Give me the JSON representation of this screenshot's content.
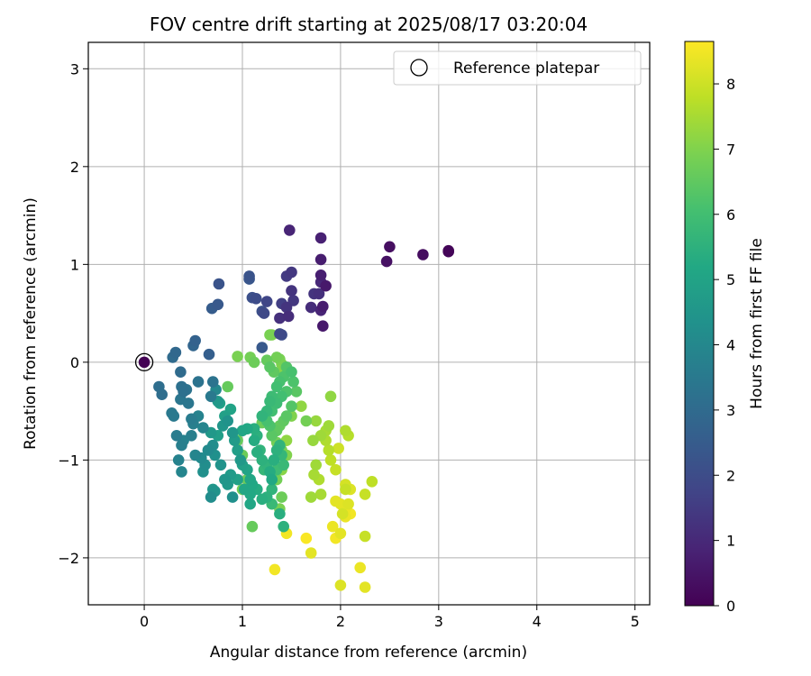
{
  "chart_data": {
    "type": "scatter",
    "title": "FOV centre drift starting at 2025/08/17 03:20:04",
    "xlabel": "Angular distance from reference (arcmin)",
    "ylabel": "Rotation from reference (arcmin)",
    "xlim": [
      -0.57,
      5.15
    ],
    "ylim": [
      -2.48,
      3.27
    ],
    "xticks": [
      0,
      1,
      2,
      3,
      4,
      5
    ],
    "xtick_labels": [
      "0",
      "1",
      "2",
      "3",
      "4",
      "5"
    ],
    "yticks": [
      -2,
      -1,
      0,
      1,
      2,
      3
    ],
    "ytick_labels": [
      "−2",
      "−1",
      "0",
      "1",
      "2",
      "3"
    ],
    "grid": true,
    "legend": {
      "position": "top-right",
      "entries": [
        {
          "label": "Reference platepar",
          "marker": "open-circle"
        }
      ]
    },
    "colorbar": {
      "label": "Hours from first FF file",
      "min": 0,
      "max": 8.65,
      "ticks": [
        0,
        1,
        2,
        3,
        4,
        5,
        6,
        7,
        8
      ],
      "tick_labels": [
        "0",
        "1",
        "2",
        "3",
        "4",
        "5",
        "6",
        "7",
        "8"
      ],
      "colormap": "viridis"
    },
    "reference_point": {
      "x": 0,
      "y": 0
    },
    "series": [
      {
        "points": [
          [
            3.1,
            1.14,
            0.1
          ],
          [
            3.1,
            1.13,
            0.2
          ],
          [
            2.84,
            1.1,
            0.3
          ],
          [
            2.5,
            1.18,
            0.35
          ],
          [
            2.47,
            1.03,
            0.4
          ],
          [
            1.48,
            1.35,
            0.9
          ],
          [
            1.8,
            1.27,
            0.8
          ],
          [
            1.8,
            1.05,
            0.7
          ],
          [
            1.8,
            0.89,
            0.75
          ],
          [
            1.8,
            0.82,
            1.0
          ],
          [
            1.85,
            0.78,
            0.6
          ],
          [
            1.82,
            0.57,
            0.7
          ],
          [
            1.8,
            0.53,
            0.9
          ],
          [
            1.82,
            0.37,
            0.6
          ],
          [
            1.7,
            0.56,
            1.1
          ],
          [
            1.73,
            0.7,
            1.3
          ],
          [
            1.78,
            0.7,
            1.2
          ],
          [
            1.5,
            0.92,
            1.4
          ],
          [
            1.45,
            0.88,
            1.5
          ],
          [
            1.5,
            0.73,
            1.3
          ],
          [
            1.52,
            0.63,
            1.4
          ],
          [
            1.4,
            0.6,
            1.6
          ],
          [
            1.38,
            0.45,
            1.2
          ],
          [
            1.47,
            0.47,
            1.1
          ],
          [
            1.45,
            0.56,
            1.3
          ],
          [
            1.25,
            0.62,
            1.8
          ],
          [
            1.22,
            0.5,
            1.9
          ],
          [
            1.2,
            0.52,
            2.1
          ],
          [
            1.14,
            0.65,
            2.0
          ],
          [
            1.1,
            0.66,
            2.1
          ],
          [
            1.07,
            0.88,
            2.2
          ],
          [
            1.07,
            0.85,
            2.3
          ],
          [
            0.76,
            0.8,
            2.2
          ],
          [
            0.75,
            0.59,
            2.4
          ],
          [
            0.69,
            0.55,
            2.5
          ],
          [
            1.2,
            0.15,
            2.4
          ],
          [
            1.38,
            0.29,
            1.9
          ],
          [
            1.4,
            0.28,
            2.0
          ],
          [
            0.66,
            0.08,
            2.6
          ],
          [
            0.52,
            0.22,
            2.7
          ],
          [
            0.5,
            0.17,
            2.8
          ],
          [
            0.32,
            0.1,
            2.9
          ],
          [
            0.29,
            0.05,
            3.0
          ],
          [
            0.37,
            -0.1,
            3.0
          ],
          [
            0.15,
            -0.25,
            3.1
          ],
          [
            0.18,
            -0.33,
            3.1
          ],
          [
            0.38,
            -0.25,
            3.2
          ],
          [
            0.4,
            -0.3,
            3.2
          ],
          [
            0.43,
            -0.28,
            3.3
          ],
          [
            0.55,
            -0.2,
            3.3
          ],
          [
            0.7,
            -0.2,
            3.3
          ],
          [
            0.68,
            -0.35,
            3.5
          ],
          [
            0.37,
            -0.38,
            3.4
          ],
          [
            0.45,
            -0.42,
            3.4
          ],
          [
            0.28,
            -0.52,
            3.5
          ],
          [
            0.3,
            -0.55,
            3.5
          ],
          [
            0.48,
            -0.58,
            3.6
          ],
          [
            0.5,
            -0.63,
            3.7
          ],
          [
            0.55,
            -0.55,
            3.8
          ],
          [
            0.6,
            -0.67,
            3.9
          ],
          [
            0.48,
            -0.75,
            3.7
          ],
          [
            0.33,
            -0.75,
            3.6
          ],
          [
            0.38,
            -0.85,
            3.7
          ],
          [
            0.4,
            -0.8,
            3.8
          ],
          [
            0.52,
            -0.95,
            3.9
          ],
          [
            0.35,
            -1.0,
            3.8
          ],
          [
            0.38,
            -1.12,
            3.9
          ],
          [
            0.65,
            -0.9,
            4.1
          ],
          [
            0.7,
            -0.85,
            4.2
          ],
          [
            0.72,
            -0.95,
            4.3
          ],
          [
            0.78,
            -1.05,
            4.4
          ],
          [
            0.8,
            -0.65,
            4.5
          ],
          [
            0.75,
            -0.4,
            4.6
          ],
          [
            0.73,
            -0.28,
            4.0
          ],
          [
            0.85,
            -0.6,
            4.4
          ],
          [
            0.9,
            -0.72,
            4.5
          ],
          [
            0.92,
            -0.8,
            4.7
          ],
          [
            0.95,
            -0.9,
            4.8
          ],
          [
            0.98,
            -1.0,
            4.6
          ],
          [
            1.0,
            -1.05,
            4.9
          ],
          [
            1.05,
            -1.1,
            5.0
          ],
          [
            1.08,
            -1.2,
            5.1
          ],
          [
            1.1,
            -1.25,
            5.2
          ],
          [
            1.02,
            -1.3,
            5.1
          ],
          [
            0.95,
            -1.2,
            4.9
          ],
          [
            0.88,
            -1.15,
            4.7
          ],
          [
            0.82,
            -1.2,
            4.5
          ],
          [
            0.85,
            -1.25,
            4.6
          ],
          [
            0.9,
            -1.38,
            4.3
          ],
          [
            0.7,
            -1.3,
            4.5
          ],
          [
            0.68,
            -1.38,
            4.2
          ],
          [
            0.72,
            -1.32,
            4.4
          ],
          [
            0.6,
            -1.12,
            4.3
          ],
          [
            0.62,
            -1.05,
            4.2
          ],
          [
            0.58,
            -0.98,
            4.1
          ],
          [
            0.68,
            -0.72,
            4.6
          ],
          [
            0.75,
            -0.75,
            4.8
          ],
          [
            0.82,
            -0.55,
            4.9
          ],
          [
            0.88,
            -0.48,
            5.0
          ],
          [
            0.77,
            -0.42,
            4.9
          ],
          [
            1.0,
            -0.7,
            5.1
          ],
          [
            1.05,
            -0.68,
            5.2
          ],
          [
            1.12,
            -0.8,
            5.3
          ],
          [
            1.15,
            -0.92,
            5.4
          ],
          [
            1.2,
            -1.0,
            5.5
          ],
          [
            1.25,
            -1.05,
            5.6
          ],
          [
            1.28,
            -1.12,
            5.3
          ],
          [
            1.3,
            -1.2,
            5.2
          ],
          [
            1.32,
            -1.0,
            5.4
          ],
          [
            1.35,
            -0.9,
            5.5
          ],
          [
            1.38,
            -0.85,
            5.6
          ],
          [
            1.4,
            -0.95,
            5.7
          ],
          [
            1.42,
            -1.05,
            5.8
          ],
          [
            1.35,
            -1.1,
            5.9
          ],
          [
            1.3,
            -1.3,
            5.6
          ],
          [
            1.25,
            -1.38,
            5.5
          ],
          [
            1.2,
            -1.4,
            5.4
          ],
          [
            1.15,
            -1.3,
            5.3
          ],
          [
            1.08,
            -1.35,
            5.2
          ],
          [
            1.08,
            -1.45,
            5.1
          ],
          [
            1.38,
            -1.55,
            5.4
          ],
          [
            1.42,
            -1.68,
            5.5
          ],
          [
            1.3,
            -1.45,
            5.8
          ],
          [
            1.22,
            -1.1,
            5.7
          ],
          [
            1.18,
            -0.9,
            5.6
          ],
          [
            1.15,
            -0.75,
            5.5
          ],
          [
            1.12,
            -0.68,
            5.4
          ],
          [
            1.2,
            -0.55,
            5.6
          ],
          [
            1.25,
            -0.5,
            5.7
          ],
          [
            1.28,
            -0.4,
            5.8
          ],
          [
            1.3,
            -0.35,
            5.9
          ],
          [
            1.35,
            -0.25,
            6.0
          ],
          [
            1.38,
            -0.2,
            6.1
          ],
          [
            1.42,
            -0.15,
            6.2
          ],
          [
            1.45,
            -0.05,
            6.3
          ],
          [
            1.5,
            -0.1,
            6.1
          ],
          [
            1.52,
            -0.2,
            6.2
          ],
          [
            1.55,
            -0.3,
            6.4
          ],
          [
            1.5,
            -0.45,
            6.3
          ],
          [
            1.45,
            -0.55,
            6.4
          ],
          [
            1.42,
            -0.6,
            6.5
          ],
          [
            1.38,
            -0.65,
            6.6
          ],
          [
            1.35,
            -0.7,
            6.5
          ],
          [
            1.3,
            -0.75,
            6.4
          ],
          [
            1.28,
            -0.65,
            6.2
          ],
          [
            1.25,
            -0.6,
            6.1
          ],
          [
            1.3,
            -0.5,
            6.0
          ],
          [
            1.35,
            -0.42,
            5.9
          ],
          [
            1.4,
            -0.35,
            6.0
          ],
          [
            1.45,
            -0.3,
            6.2
          ],
          [
            1.32,
            -0.1,
            6.5
          ],
          [
            1.28,
            -0.05,
            6.4
          ],
          [
            1.25,
            0.02,
            6.6
          ],
          [
            1.35,
            0.05,
            6.8
          ],
          [
            1.38,
            0.03,
            6.9
          ],
          [
            1.4,
            -0.02,
            7.0
          ],
          [
            1.42,
            -0.08,
            7.1
          ],
          [
            1.28,
            0.28,
            6.9
          ],
          [
            1.3,
            0.28,
            7.0
          ],
          [
            1.12,
            0.0,
            6.7
          ],
          [
            1.08,
            0.05,
            6.8
          ],
          [
            0.95,
            0.06,
            6.9
          ],
          [
            0.85,
            -0.25,
            6.6
          ],
          [
            1.2,
            -0.62,
            6.7
          ],
          [
            1.35,
            -0.82,
            6.8
          ],
          [
            1.4,
            -0.9,
            6.9
          ],
          [
            1.45,
            -0.95,
            7.0
          ],
          [
            1.4,
            -1.1,
            7.1
          ],
          [
            1.35,
            -1.2,
            6.8
          ],
          [
            1.4,
            -1.38,
            6.7
          ],
          [
            1.38,
            -1.5,
            6.9
          ],
          [
            1.1,
            -1.68,
            6.6
          ],
          [
            1.05,
            -1.2,
            6.7
          ],
          [
            1.0,
            -1.3,
            6.8
          ],
          [
            1.0,
            -0.95,
            6.7
          ],
          [
            0.95,
            -0.8,
            6.6
          ],
          [
            1.45,
            -0.8,
            7.2
          ],
          [
            1.5,
            -0.55,
            7.0
          ],
          [
            1.6,
            -0.45,
            7.2
          ],
          [
            1.65,
            -0.6,
            6.8
          ],
          [
            1.75,
            -0.6,
            7.3
          ],
          [
            1.8,
            -0.75,
            7.4
          ],
          [
            1.72,
            -0.8,
            7.3
          ],
          [
            1.85,
            -0.7,
            7.5
          ],
          [
            1.88,
            -0.65,
            7.4
          ],
          [
            1.9,
            -0.35,
            7.2
          ],
          [
            1.85,
            -0.8,
            7.6
          ],
          [
            1.88,
            -0.9,
            7.7
          ],
          [
            2.05,
            -0.7,
            7.6
          ],
          [
            2.08,
            -0.75,
            7.7
          ],
          [
            1.75,
            -1.05,
            7.4
          ],
          [
            1.73,
            -1.15,
            7.5
          ],
          [
            1.78,
            -1.2,
            7.6
          ],
          [
            1.7,
            -1.38,
            7.4
          ],
          [
            1.8,
            -1.35,
            7.5
          ],
          [
            1.9,
            -1.0,
            7.8
          ],
          [
            1.95,
            -1.1,
            7.9
          ],
          [
            1.98,
            -0.88,
            8.0
          ],
          [
            2.05,
            -1.25,
            8.1
          ],
          [
            2.1,
            -1.3,
            8.2
          ],
          [
            2.05,
            -1.3,
            7.9
          ],
          [
            2.32,
            -1.22,
            7.8
          ],
          [
            2.25,
            -1.35,
            7.9
          ],
          [
            2.0,
            -1.45,
            8.3
          ],
          [
            2.05,
            -1.5,
            8.4
          ],
          [
            2.1,
            -1.55,
            8.5
          ],
          [
            2.08,
            -1.45,
            8.2
          ],
          [
            1.95,
            -1.42,
            8.3
          ],
          [
            2.02,
            -1.55,
            8.1
          ],
          [
            2.05,
            -1.58,
            8.4
          ],
          [
            1.92,
            -1.68,
            8.4
          ],
          [
            1.95,
            -1.8,
            8.5
          ],
          [
            2.0,
            -1.75,
            8.3
          ],
          [
            2.25,
            -1.78,
            7.9
          ],
          [
            1.65,
            -1.8,
            8.6
          ],
          [
            1.45,
            -1.75,
            8.5
          ],
          [
            1.7,
            -1.95,
            8.3
          ],
          [
            1.33,
            -2.12,
            8.5
          ],
          [
            2.2,
            -2.1,
            8.4
          ],
          [
            2.25,
            -2.3,
            8.3
          ],
          [
            2.0,
            -2.28,
            8.2
          ]
        ]
      }
    ]
  }
}
